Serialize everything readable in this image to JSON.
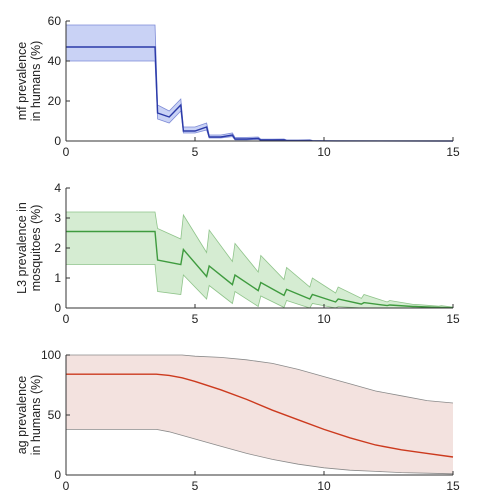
{
  "chart_data": [
    {
      "type": "line",
      "ylabel_lines": [
        "mf prevalence",
        "in humans (%)"
      ],
      "xlim": [
        0,
        15
      ],
      "ylim": [
        0,
        60
      ],
      "xticks": [
        0,
        5,
        10,
        15
      ],
      "yticks": [
        0,
        20,
        40,
        60
      ],
      "x_tick_labels": [
        "0",
        "5",
        "10",
        "15"
      ],
      "y_tick_labels": [
        "0",
        "20",
        "40",
        "60"
      ],
      "grid": false,
      "line_color": "#2b3aa8",
      "band_color": "#c9d2f5",
      "band_edge_color": "#7d8ad6",
      "x": [
        0,
        3.45,
        3.55,
        4.0,
        4.45,
        4.55,
        5.0,
        5.45,
        5.55,
        6.0,
        6.45,
        6.55,
        7.0,
        7.45,
        7.55,
        8.0,
        8.45,
        8.55,
        9.0,
        9.45,
        9.55,
        10.5,
        15
      ],
      "mean": [
        47,
        47,
        14,
        12,
        18,
        5,
        5,
        7,
        2,
        2,
        3,
        1,
        1,
        1.3,
        0.5,
        0.5,
        0.6,
        0.2,
        0.2,
        0.25,
        0.1,
        0.05,
        0
      ],
      "lower": [
        40,
        40,
        11,
        9,
        15,
        4,
        4,
        5.5,
        1.5,
        1.5,
        2.2,
        0.6,
        0.6,
        0.8,
        0.2,
        0.2,
        0.3,
        0.1,
        0.1,
        0.1,
        0,
        0,
        0
      ],
      "upper": [
        58,
        58,
        18,
        15,
        21,
        7,
        7,
        9,
        3,
        3,
        4,
        1.8,
        1.8,
        2,
        0.9,
        0.9,
        1,
        0.5,
        0.5,
        0.6,
        0.3,
        0.1,
        0
      ]
    },
    {
      "type": "line",
      "ylabel_lines": [
        "L3 prevalence in",
        "mosquitoes (%)"
      ],
      "xlim": [
        0,
        15
      ],
      "ylim": [
        0,
        4
      ],
      "xticks": [
        0,
        5,
        10,
        15
      ],
      "yticks": [
        0,
        1,
        2,
        3,
        4
      ],
      "x_tick_labels": [
        "0",
        "5",
        "10",
        "15"
      ],
      "y_tick_labels": [
        "0",
        "1",
        "2",
        "3",
        "4"
      ],
      "grid": false,
      "line_color": "#3f9b3f",
      "band_color": "#d5ecd2",
      "band_edge_color": "#8fc48a",
      "x": [
        0,
        3.45,
        3.55,
        4.45,
        4.55,
        5.45,
        5.55,
        6.45,
        6.55,
        7.45,
        7.55,
        8.45,
        8.55,
        9.45,
        9.55,
        10.45,
        10.55,
        11.45,
        11.55,
        12.45,
        12.55,
        13.45,
        13.55,
        14.45,
        14.55,
        15
      ],
      "mean": [
        2.55,
        2.55,
        1.6,
        1.45,
        1.95,
        1.05,
        1.4,
        0.78,
        1.1,
        0.58,
        0.85,
        0.42,
        0.62,
        0.3,
        0.45,
        0.2,
        0.3,
        0.13,
        0.18,
        0.08,
        0.1,
        0.05,
        0.05,
        0.02,
        0.02,
        0.01
      ],
      "lower": [
        1.45,
        1.45,
        0.55,
        0.45,
        1.1,
        0.3,
        0.75,
        0.15,
        0.55,
        0.05,
        0.4,
        0.02,
        0.25,
        0,
        0.15,
        0,
        0.05,
        0,
        0,
        0,
        0,
        0,
        0,
        0,
        0,
        0
      ],
      "upper": [
        3.2,
        3.2,
        2.65,
        2.3,
        3.1,
        1.85,
        2.6,
        1.55,
        2.15,
        1.2,
        1.75,
        0.95,
        1.35,
        0.7,
        1.0,
        0.5,
        0.7,
        0.32,
        0.45,
        0.2,
        0.25,
        0.12,
        0.12,
        0.06,
        0.08,
        0.03
      ]
    },
    {
      "type": "line",
      "ylabel_lines": [
        "ag prevalence",
        "in humans (%)"
      ],
      "xlim": [
        0,
        15
      ],
      "ylim": [
        0,
        100
      ],
      "xticks": [
        0,
        5,
        10,
        15
      ],
      "yticks": [
        0,
        50,
        100
      ],
      "x_tick_labels": [
        "0",
        "5",
        "10",
        "15"
      ],
      "y_tick_labels": [
        "0",
        "50",
        "100"
      ],
      "grid": false,
      "line_color": "#cc3a1e",
      "band_color": "#f3e2df",
      "band_edge_color": "#8a8a8a",
      "x": [
        0,
        3.5,
        4,
        4.5,
        5,
        6,
        7,
        8,
        9,
        10,
        11,
        12,
        13,
        14,
        15
      ],
      "mean": [
        84,
        84,
        83,
        81,
        78,
        71,
        63,
        54,
        46,
        38,
        31,
        25,
        21,
        18,
        15
      ],
      "lower": [
        38,
        38,
        36,
        33,
        30,
        24,
        18,
        13,
        9,
        6,
        4,
        3,
        2,
        1.5,
        1
      ],
      "upper": [
        100,
        100,
        100,
        100,
        99,
        98,
        96,
        93,
        88,
        82,
        76,
        70,
        66,
        62,
        60
      ]
    }
  ]
}
